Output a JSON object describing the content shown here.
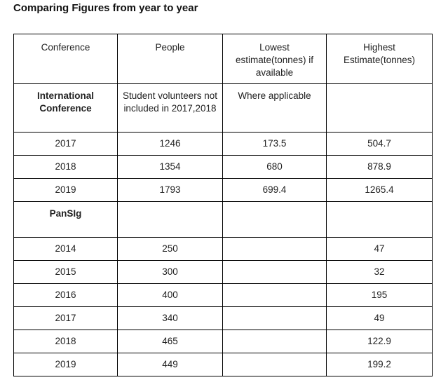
{
  "title": "Comparing Figures from year to year",
  "header": {
    "conference": "Conference",
    "people": "People",
    "lowest": "Lowest estimate(tonnes) if available",
    "highest": "Highest Estimate(tonnes)"
  },
  "international": {
    "name": "International Conference",
    "people_note": "Student volunteers not included in 2017,2018",
    "lowest_note": "Where applicable",
    "highest_note": "",
    "rows": [
      {
        "year": "2017",
        "people": "1246",
        "lowest": "173.5",
        "highest": "504.7"
      },
      {
        "year": "2018",
        "people": "1354",
        "lowest": "680",
        "highest": "878.9"
      },
      {
        "year": "2019",
        "people": "1793",
        "lowest": "699.4",
        "highest": "1265.4"
      }
    ]
  },
  "pansig": {
    "name": "PanSIg",
    "rows": [
      {
        "year": "2014",
        "people": "250",
        "lowest": "",
        "highest": "47"
      },
      {
        "year": "2015",
        "people": "300",
        "lowest": "",
        "highest": "32"
      },
      {
        "year": "2016",
        "people": "400",
        "lowest": "",
        "highest": "195"
      },
      {
        "year": "2017",
        "people": "340",
        "lowest": "",
        "highest": "49"
      },
      {
        "year": "2018",
        "people": "465",
        "lowest": "",
        "highest": "122.9"
      },
      {
        "year": "2019",
        "people": "449",
        "lowest": "",
        "highest": "199.2"
      }
    ]
  }
}
